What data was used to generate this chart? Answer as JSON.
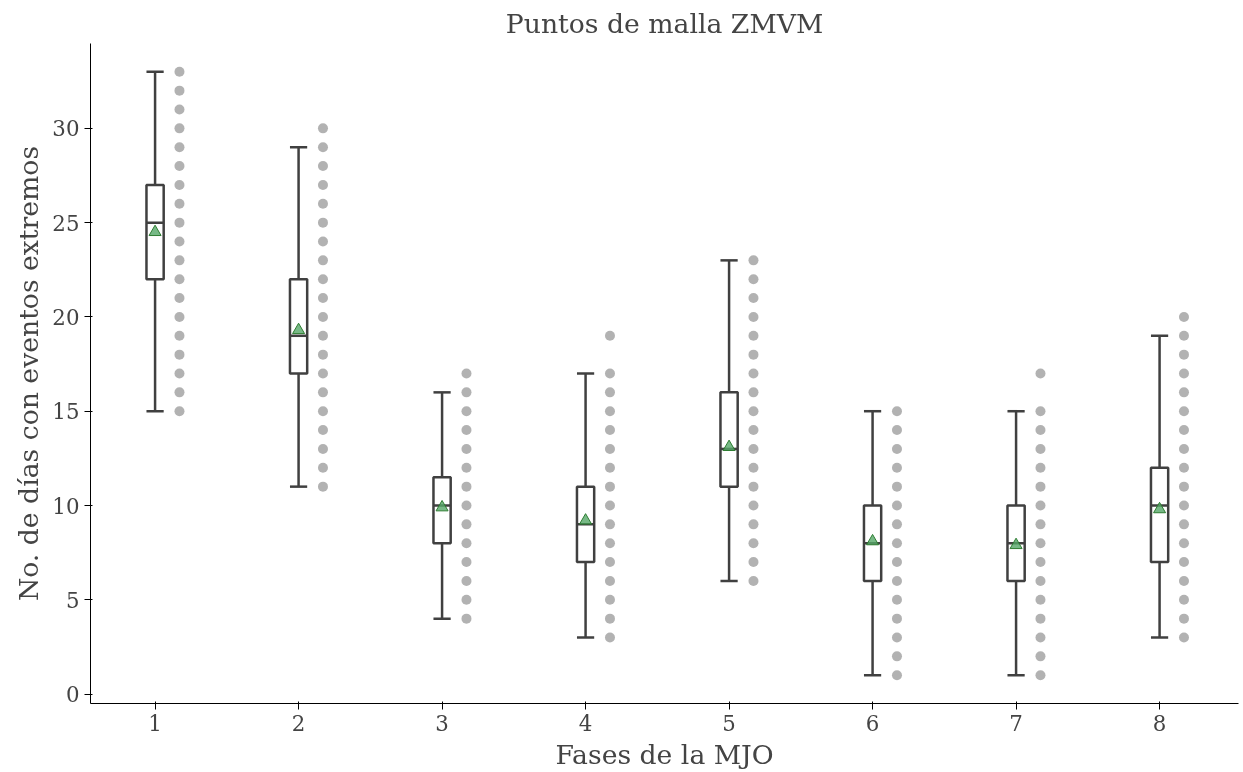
{
  "chart_data": {
    "type": "box",
    "title": "Puntos de malla ZMVM",
    "xlabel": "Fases de la MJO",
    "ylabel": "No. de días con eventos extremos",
    "categories": [
      "1",
      "2",
      "3",
      "4",
      "5",
      "6",
      "7",
      "8"
    ],
    "ylim": [
      -0.5,
      34.5
    ],
    "yticks": [
      0,
      5,
      10,
      15,
      20,
      25,
      30
    ],
    "grid": false,
    "series": [
      {
        "color": "#404040",
        "boxes": [
          {
            "low": 15,
            "q1": 22,
            "median": 25,
            "q3": 27,
            "high": 33,
            "mean": 24.5
          },
          {
            "low": 11,
            "q1": 17,
            "median": 19,
            "q3": 22,
            "high": 29,
            "mean": 19.3
          },
          {
            "low": 4,
            "q1": 8,
            "median": 10,
            "q3": 11.5,
            "high": 16,
            "mean": 9.9
          },
          {
            "low": 3,
            "q1": 7,
            "median": 9,
            "q3": 11,
            "high": 17,
            "mean": 9.2
          },
          {
            "low": 6,
            "q1": 11,
            "median": 13,
            "q3": 16,
            "high": 23,
            "mean": 13.1
          },
          {
            "low": 1,
            "q1": 6,
            "median": 8,
            "q3": 10,
            "high": 15,
            "mean": 8.1
          },
          {
            "low": 1,
            "q1": 6,
            "median": 8,
            "q3": 10,
            "high": 15,
            "mean": 7.9
          },
          {
            "low": 3,
            "q1": 7,
            "median": 10,
            "q3": 12,
            "high": 19,
            "mean": 9.8
          }
        ]
      },
      {
        "type": "scatter",
        "color": "#555555",
        "marker": "circle",
        "x": [
          "1",
          "1",
          "1",
          "1",
          "1",
          "1",
          "1",
          "1",
          "1",
          "1",
          "1",
          "1",
          "1",
          "1",
          "1",
          "1",
          "1",
          "1",
          "1",
          "2",
          "2",
          "2",
          "2",
          "2",
          "2",
          "2",
          "2",
          "2",
          "2",
          "2",
          "2",
          "2",
          "2",
          "2",
          "2",
          "2",
          "2",
          "2",
          "2",
          "3",
          "3",
          "3",
          "3",
          "3",
          "3",
          "3",
          "3",
          "3",
          "3",
          "3",
          "3",
          "3",
          "3",
          "4",
          "4",
          "4",
          "4",
          "4",
          "4",
          "4",
          "4",
          "4",
          "4",
          "4",
          "4",
          "4",
          "4",
          "4",
          "4",
          "5",
          "5",
          "5",
          "5",
          "5",
          "5",
          "5",
          "5",
          "5",
          "5",
          "5",
          "5",
          "5",
          "5",
          "5",
          "5",
          "5",
          "5",
          "6",
          "6",
          "6",
          "6",
          "6",
          "6",
          "6",
          "6",
          "6",
          "6",
          "6",
          "6",
          "6",
          "6",
          "6",
          "7",
          "7",
          "7",
          "7",
          "7",
          "7",
          "7",
          "7",
          "7",
          "7",
          "7",
          "7",
          "7",
          "7",
          "7",
          "7",
          "8",
          "8",
          "8",
          "8",
          "8",
          "8",
          "8",
          "8",
          "8",
          "8",
          "8",
          "8",
          "8",
          "8",
          "8",
          "8",
          "8",
          "8"
        ],
        "values": [
          15,
          16,
          17,
          18,
          19,
          20,
          21,
          22,
          23,
          24,
          25,
          26,
          27,
          28,
          29,
          30,
          31,
          32,
          33,
          11,
          12,
          13,
          14,
          15,
          16,
          17,
          18,
          19,
          20,
          21,
          22,
          23,
          24,
          25,
          26,
          27,
          28,
          29,
          30,
          4,
          5,
          6,
          7,
          8,
          9,
          10,
          11,
          12,
          13,
          14,
          15,
          16,
          17,
          3,
          4,
          5,
          6,
          7,
          8,
          9,
          10,
          11,
          12,
          13,
          14,
          15,
          16,
          17,
          19,
          6,
          7,
          8,
          9,
          10,
          11,
          12,
          13,
          14,
          15,
          16,
          17,
          18,
          19,
          20,
          21,
          22,
          23,
          1,
          2,
          3,
          4,
          5,
          6,
          7,
          8,
          9,
          10,
          11,
          12,
          13,
          14,
          15,
          1,
          2,
          3,
          4,
          5,
          6,
          7,
          8,
          9,
          10,
          11,
          12,
          13,
          14,
          15,
          17,
          3,
          4,
          5,
          6,
          7,
          8,
          9,
          10,
          11,
          12,
          13,
          14,
          15,
          16,
          17,
          18,
          19,
          20
        ]
      }
    ]
  }
}
